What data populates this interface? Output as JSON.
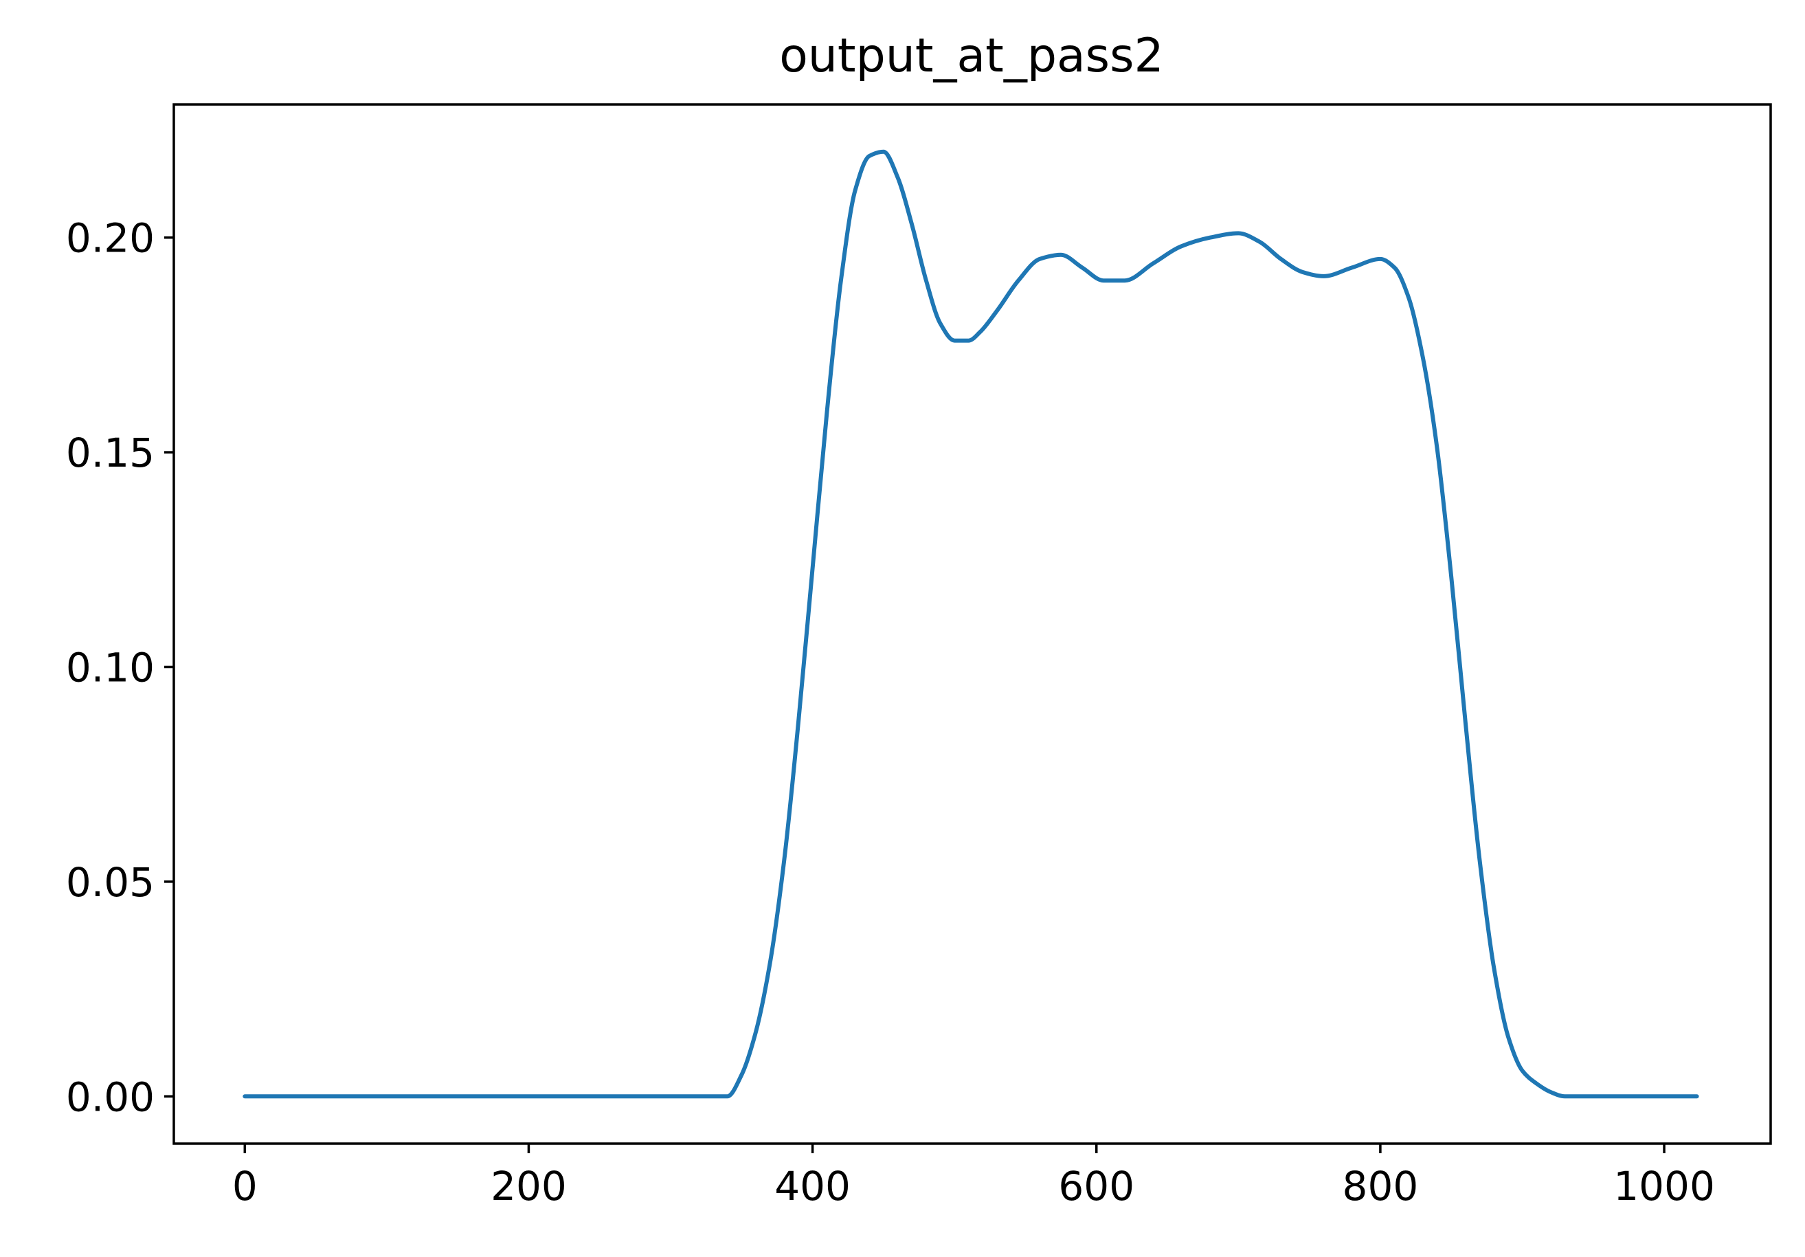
{
  "chart_data": {
    "type": "line",
    "title": "output_at_pass2",
    "xlabel": "",
    "ylabel": "",
    "xlim": [
      -50,
      1075
    ],
    "ylim": [
      -0.011,
      0.231
    ],
    "xticks": [
      0,
      200,
      400,
      600,
      800,
      1000
    ],
    "xtick_labels": [
      "0",
      "200",
      "400",
      "600",
      "800",
      "1000"
    ],
    "yticks": [
      0.0,
      0.05,
      0.1,
      0.15,
      0.2
    ],
    "ytick_labels": [
      "0.00",
      "0.05",
      "0.10",
      "0.15",
      "0.20"
    ],
    "grid": false,
    "legend": "none",
    "series": [
      {
        "color": "#1f77b4",
        "x": [
          0,
          100,
          200,
          300,
          340,
          350,
          360,
          370,
          380,
          390,
          400,
          410,
          420,
          430,
          440,
          450,
          460,
          470,
          480,
          490,
          500,
          510,
          518,
          530,
          545,
          560,
          575,
          590,
          605,
          620,
          640,
          660,
          680,
          700,
          715,
          730,
          745,
          760,
          780,
          800,
          810,
          820,
          830,
          840,
          850,
          860,
          870,
          880,
          890,
          900,
          910,
          920,
          930,
          945,
          960,
          980,
          1000,
          1023
        ],
        "y": [
          0.0,
          0.0,
          0.0,
          0.0,
          0.0,
          0.005,
          0.015,
          0.031,
          0.055,
          0.087,
          0.123,
          0.159,
          0.19,
          0.211,
          0.219,
          0.22,
          0.214,
          0.203,
          0.19,
          0.18,
          0.176,
          0.176,
          0.178,
          0.183,
          0.19,
          0.195,
          0.196,
          0.193,
          0.19,
          0.19,
          0.194,
          0.198,
          0.2,
          0.201,
          0.199,
          0.195,
          0.192,
          0.191,
          0.193,
          0.195,
          0.193,
          0.186,
          0.172,
          0.151,
          0.121,
          0.087,
          0.055,
          0.03,
          0.014,
          0.006,
          0.003,
          0.001,
          0.0,
          0.0,
          0.0,
          0.0,
          0.0,
          0.0
        ]
      }
    ]
  }
}
